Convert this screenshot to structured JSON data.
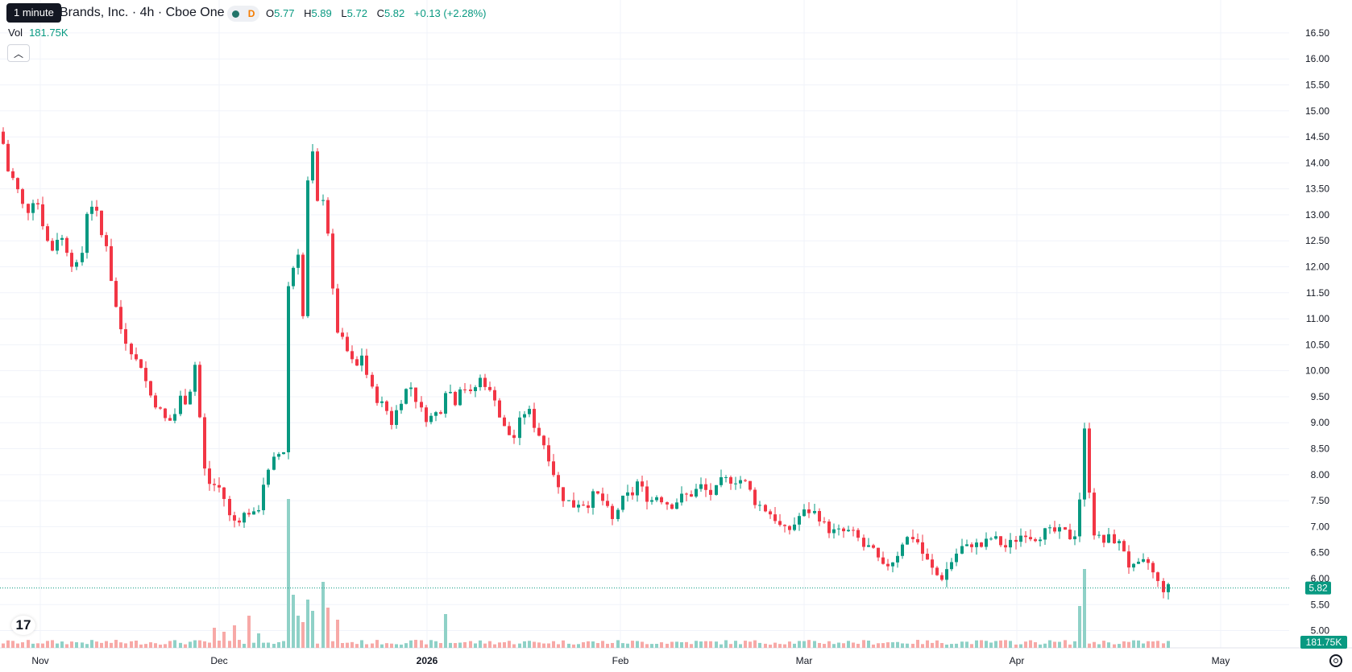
{
  "header": {
    "tooltip": "1 minute",
    "title": "Brands, Inc. · 4h · Cboe One",
    "status_letter": "D",
    "ohlc": [
      {
        "key": "O",
        "value": "5.77"
      },
      {
        "key": "H",
        "value": "5.89"
      },
      {
        "key": "L",
        "value": "5.72"
      },
      {
        "key": "C",
        "value": "5.82"
      }
    ],
    "change": "+0.13 (+2.28%)"
  },
  "volume": {
    "label": "Vol",
    "value": "181.75K"
  },
  "icons": {
    "collapse": "chevron-up-icon",
    "logo": "tradingview-logo-icon",
    "settings": "gear-icon"
  },
  "colors": {
    "up": "#089981",
    "down": "#f23645",
    "up_volume": "#8fd1c7",
    "down_volume": "#f7a9a7",
    "grid": "#f0f3fa"
  },
  "chart_data": {
    "type": "candlestick",
    "title": "Brands, Inc. · 4h · Cboe One",
    "interval": "4h",
    "y_axis": {
      "position": "right",
      "ylim": [
        4.9,
        16.7
      ],
      "ticks": [
        "5.00",
        "5.50",
        "6.00",
        "6.50",
        "7.00",
        "7.50",
        "8.00",
        "8.50",
        "9.00",
        "9.50",
        "10.00",
        "10.50",
        "11.00",
        "11.50",
        "12.00",
        "12.50",
        "13.00",
        "13.50",
        "14.00",
        "14.50",
        "15.00",
        "15.50",
        "16.00",
        "16.50"
      ]
    },
    "x_axis": {
      "ticks": [
        "Nov",
        "Dec",
        "2026",
        "Feb",
        "Mar",
        "Apr",
        "May"
      ]
    },
    "last_price": "5.82",
    "last_volume": "181.75K",
    "grid": true,
    "price_path": [
      [
        0,
        14.6
      ],
      [
        6,
        13.9
      ],
      [
        14,
        13.7
      ],
      [
        22,
        13.4
      ],
      [
        30,
        13.0
      ],
      [
        38,
        13.3
      ],
      [
        46,
        13.2
      ],
      [
        54,
        12.6
      ],
      [
        62,
        12.3
      ],
      [
        70,
        12.6
      ],
      [
        78,
        12.5
      ],
      [
        86,
        12.1
      ],
      [
        94,
        12.0
      ],
      [
        100,
        12.3
      ],
      [
        106,
        13.1
      ],
      [
        112,
        13.2
      ],
      [
        118,
        13.0
      ],
      [
        124,
        12.6
      ],
      [
        132,
        12.4
      ],
      [
        138,
        11.5
      ],
      [
        144,
        11.1
      ],
      [
        150,
        10.7
      ],
      [
        158,
        10.5
      ],
      [
        166,
        10.2
      ],
      [
        174,
        10.1
      ],
      [
        182,
        9.6
      ],
      [
        190,
        9.4
      ],
      [
        198,
        9.2
      ],
      [
        206,
        9.0
      ],
      [
        214,
        9.1
      ],
      [
        222,
        9.5
      ],
      [
        230,
        9.4
      ],
      [
        236,
        9.8
      ],
      [
        242,
        10.3
      ],
      [
        248,
        8.5
      ],
      [
        254,
        7.9
      ],
      [
        260,
        7.8
      ],
      [
        266,
        7.8
      ],
      [
        274,
        7.7
      ],
      [
        282,
        7.2
      ],
      [
        290,
        7.1
      ],
      [
        298,
        7.2
      ],
      [
        306,
        7.3
      ],
      [
        314,
        7.2
      ],
      [
        320,
        7.4
      ],
      [
        326,
        7.9
      ],
      [
        334,
        8.1
      ],
      [
        340,
        8.4
      ],
      [
        346,
        8.4
      ],
      [
        352,
        8.5
      ],
      [
        356,
        11.8
      ],
      [
        362,
        12.0
      ],
      [
        368,
        12.3
      ],
      [
        374,
        11.0
      ],
      [
        380,
        13.6
      ],
      [
        386,
        14.2
      ],
      [
        392,
        13.2
      ],
      [
        398,
        13.4
      ],
      [
        404,
        12.8
      ],
      [
        410,
        11.6
      ],
      [
        416,
        10.8
      ],
      [
        422,
        10.6
      ],
      [
        428,
        10.4
      ],
      [
        434,
        10.2
      ],
      [
        440,
        10.0
      ],
      [
        446,
        10.4
      ],
      [
        452,
        10.0
      ],
      [
        460,
        9.6
      ],
      [
        468,
        9.4
      ],
      [
        476,
        9.3
      ],
      [
        484,
        9.0
      ],
      [
        492,
        9.3
      ],
      [
        500,
        9.6
      ],
      [
        508,
        9.7
      ],
      [
        516,
        9.4
      ],
      [
        524,
        9.1
      ],
      [
        532,
        9.1
      ],
      [
        540,
        9.2
      ],
      [
        548,
        9.3
      ],
      [
        554,
        10.0
      ],
      [
        560,
        9.2
      ],
      [
        566,
        9.6
      ],
      [
        572,
        9.8
      ],
      [
        580,
        9.5
      ],
      [
        588,
        9.7
      ],
      [
        596,
        9.9
      ],
      [
        604,
        9.6
      ],
      [
        612,
        9.5
      ],
      [
        620,
        9.0
      ],
      [
        628,
        8.8
      ],
      [
        636,
        8.7
      ],
      [
        642,
        9.0
      ],
      [
        648,
        9.2
      ],
      [
        656,
        9.2
      ],
      [
        662,
        8.9
      ],
      [
        670,
        8.7
      ],
      [
        678,
        8.4
      ],
      [
        686,
        8.0
      ],
      [
        694,
        7.6
      ],
      [
        702,
        7.5
      ],
      [
        710,
        7.4
      ],
      [
        718,
        7.5
      ],
      [
        726,
        7.4
      ],
      [
        734,
        7.6
      ],
      [
        742,
        7.6
      ],
      [
        750,
        7.4
      ],
      [
        758,
        7.1
      ],
      [
        766,
        7.4
      ],
      [
        774,
        7.6
      ],
      [
        782,
        7.6
      ],
      [
        790,
        7.9
      ],
      [
        798,
        7.6
      ],
      [
        806,
        7.5
      ],
      [
        814,
        7.6
      ],
      [
        822,
        7.5
      ],
      [
        830,
        7.4
      ],
      [
        838,
        7.5
      ],
      [
        846,
        7.6
      ],
      [
        854,
        7.6
      ],
      [
        862,
        7.7
      ],
      [
        870,
        7.8
      ],
      [
        878,
        7.6
      ],
      [
        886,
        7.7
      ],
      [
        894,
        7.9
      ],
      [
        902,
        7.9
      ],
      [
        910,
        7.9
      ],
      [
        918,
        7.9
      ],
      [
        926,
        7.8
      ],
      [
        934,
        7.5
      ],
      [
        942,
        7.4
      ],
      [
        950,
        7.3
      ],
      [
        958,
        7.2
      ],
      [
        966,
        7.0
      ],
      [
        974,
        6.9
      ],
      [
        982,
        7.0
      ],
      [
        990,
        7.2
      ],
      [
        998,
        7.3
      ],
      [
        1006,
        7.3
      ],
      [
        1014,
        7.2
      ],
      [
        1022,
        7.0
      ],
      [
        1030,
        6.9
      ],
      [
        1038,
        6.9
      ],
      [
        1046,
        6.9
      ],
      [
        1054,
        6.9
      ],
      [
        1062,
        6.8
      ],
      [
        1070,
        6.6
      ],
      [
        1078,
        6.6
      ],
      [
        1086,
        6.4
      ],
      [
        1094,
        6.2
      ],
      [
        1102,
        6.3
      ],
      [
        1110,
        6.4
      ],
      [
        1118,
        6.7
      ],
      [
        1126,
        6.8
      ],
      [
        1134,
        6.8
      ],
      [
        1142,
        6.5
      ],
      [
        1150,
        6.3
      ],
      [
        1158,
        6.1
      ],
      [
        1166,
        6.0
      ],
      [
        1174,
        6.2
      ],
      [
        1182,
        6.4
      ],
      [
        1190,
        6.6
      ],
      [
        1198,
        6.6
      ],
      [
        1206,
        6.7
      ],
      [
        1214,
        6.6
      ],
      [
        1222,
        6.7
      ],
      [
        1230,
        6.8
      ],
      [
        1238,
        6.7
      ],
      [
        1246,
        6.6
      ],
      [
        1254,
        6.7
      ],
      [
        1262,
        6.8
      ],
      [
        1270,
        6.9
      ],
      [
        1278,
        6.8
      ],
      [
        1286,
        6.8
      ],
      [
        1294,
        6.9
      ],
      [
        1302,
        6.9
      ],
      [
        1310,
        6.9
      ],
      [
        1318,
        6.9
      ],
      [
        1326,
        6.8
      ],
      [
        1334,
        6.9
      ],
      [
        1340,
        7.9
      ],
      [
        1346,
        9.3
      ],
      [
        1352,
        7.0
      ],
      [
        1360,
        6.8
      ],
      [
        1368,
        6.7
      ],
      [
        1376,
        6.8
      ],
      [
        1384,
        6.7
      ],
      [
        1392,
        6.6
      ],
      [
        1400,
        6.2
      ],
      [
        1408,
        6.2
      ],
      [
        1416,
        6.3
      ],
      [
        1424,
        6.3
      ],
      [
        1432,
        6.0
      ],
      [
        1440,
        5.8
      ],
      [
        1448,
        5.82
      ]
    ],
    "volume_spikes": [
      [
        266,
        25
      ],
      [
        274,
        20
      ],
      [
        290,
        28
      ],
      [
        304,
        40
      ],
      [
        320,
        18
      ],
      [
        356,
        185
      ],
      [
        362,
        66
      ],
      [
        368,
        40
      ],
      [
        374,
        32
      ],
      [
        380,
        60
      ],
      [
        386,
        46
      ],
      [
        398,
        82
      ],
      [
        404,
        50
      ],
      [
        414,
        35
      ],
      [
        550,
        42
      ],
      [
        1337,
        52
      ],
      [
        1346,
        98
      ]
    ]
  }
}
